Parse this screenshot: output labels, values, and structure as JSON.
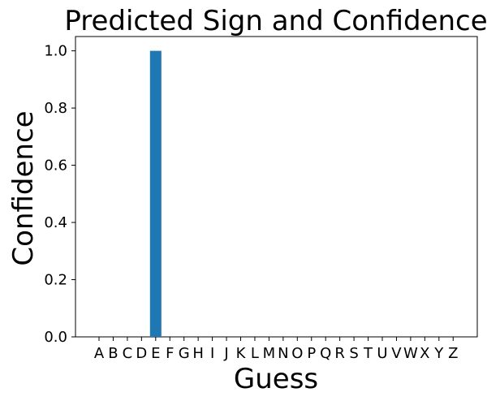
{
  "chart_data": {
    "type": "bar",
    "title": "Predicted Sign and Confidence",
    "xlabel": "Guess",
    "ylabel": "Confidence",
    "categories": [
      "A",
      "B",
      "C",
      "D",
      "E",
      "F",
      "G",
      "H",
      "I",
      "J",
      "K",
      "L",
      "M",
      "N",
      "O",
      "P",
      "Q",
      "R",
      "S",
      "T",
      "U",
      "V",
      "W",
      "X",
      "Y",
      "Z"
    ],
    "values": [
      0,
      0,
      0,
      0,
      1.0,
      0,
      0,
      0,
      0,
      0,
      0,
      0,
      0,
      0,
      0,
      0,
      0,
      0,
      0,
      0,
      0,
      0,
      0,
      0,
      0,
      0
    ],
    "ylim": [
      0,
      1.05
    ],
    "yticks": [
      "0.0",
      "0.2",
      "0.4",
      "0.6",
      "0.8",
      "1.0"
    ],
    "grid": false,
    "bar_color": "#1f77b4"
  }
}
